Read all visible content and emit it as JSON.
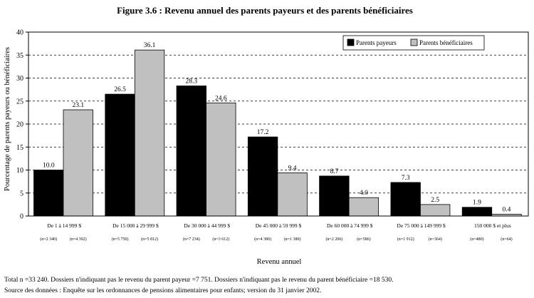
{
  "chart_data": {
    "type": "bar",
    "title": "Figure 3.6 : Revenu annuel des parents payeurs et des parents bénéficiaires",
    "xlabel": "Revenu annuel",
    "ylabel": "Pourcentage de parents payeurs ou bénéficiaires",
    "ylim": [
      0,
      40
    ],
    "yticks": [
      0,
      5,
      10,
      15,
      20,
      25,
      30,
      35,
      40
    ],
    "grid": "horizontal dashed",
    "legend_position": "top-right",
    "categories": [
      "De 1 à 14 999 $",
      "De 15 000 à 29 999 $",
      "De 30 000 à 44 999 $",
      "De 45 000 à 59 999 $",
      "De 60 000 à 74 999 $",
      "De 75 000 à 149 999 $",
      "150 000 $ et plus"
    ],
    "sample_sizes": [
      [
        "(n=2 340)",
        "(n=4 392)"
      ],
      [
        "(n=5 750)",
        "(n=5 812)"
      ],
      [
        "(n=7 234)",
        "(n=3 612)"
      ],
      [
        "(n=4 380)",
        "(n=1 380)"
      ],
      [
        "(n=2 206)",
        "(n=586)"
      ],
      [
        "(n=1 912)",
        "(n=364)"
      ],
      [
        "(n=480)",
        "(n=64)"
      ]
    ],
    "series": [
      {
        "name": "Parents payeurs",
        "color": "#000000",
        "values": [
          10.0,
          26.5,
          28.3,
          17.2,
          8.7,
          7.3,
          1.9
        ]
      },
      {
        "name": "Parents bénéficiaires",
        "color": "#c0c0c0",
        "values": [
          23.1,
          36.1,
          24.6,
          9.4,
          4.0,
          2.5,
          0.4
        ]
      }
    ]
  },
  "footer": {
    "line1": "Total n =33 240.  Dossiers n'indiquant pas le revenu du parent payeur =7 751.  Dossiers n'indiquant pas le revenu du parent bénéficiaire =18 530.",
    "line2": "Source des données : Enquête sur les ordonnances de pensions alimentaires pour enfants; version du 31 janvier 2002."
  }
}
